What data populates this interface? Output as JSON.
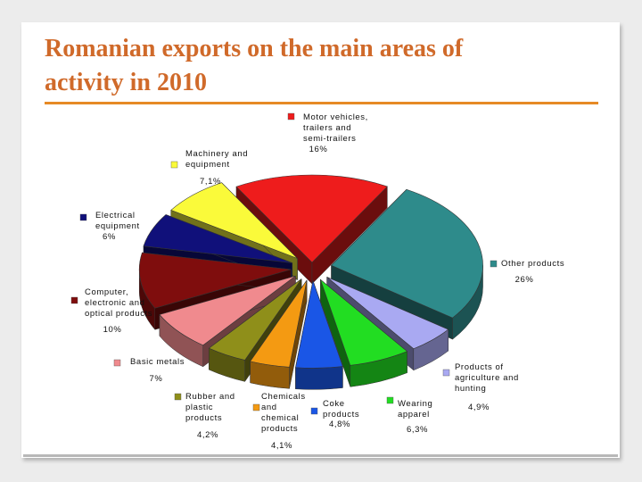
{
  "slide": {
    "title": "Romanian exports on the main areas of activity in 2010"
  },
  "colors": {
    "title": "#d06a2a",
    "title_rule": "#e68a25"
  },
  "chart_data": {
    "type": "pie",
    "title": "",
    "style": "3d exploded pie",
    "legend": "labels beside each slice",
    "slices": [
      {
        "name": "Motor vehicles, trailers and semi-trailers",
        "label_lines": [
          "Motor vehicles,",
          "trailers and",
          "semi-trailers"
        ],
        "value": 16,
        "value_text": "16%",
        "color": "#ee1c1c"
      },
      {
        "name": "Other products",
        "label_lines": [
          "Other products"
        ],
        "value": 26,
        "value_text": "26%",
        "color": "#2e8b8b"
      },
      {
        "name": "Products of agriculture and hunting",
        "label_lines": [
          "Products of",
          "agriculture and",
          "hunting"
        ],
        "value": 4.9,
        "value_text": "4,9%",
        "color": "#a9a9f2"
      },
      {
        "name": "Wearing apparel",
        "label_lines": [
          "Wearing",
          "apparel"
        ],
        "value": 6.3,
        "value_text": "6,3%",
        "color": "#22dd22"
      },
      {
        "name": "Coke products",
        "label_lines": [
          "Coke",
          "products"
        ],
        "value": 4.8,
        "value_text": "4,8%",
        "color": "#1a56e6"
      },
      {
        "name": "Chemicals and chemical products",
        "label_lines": [
          "Chemicals",
          "and",
          "chemical",
          "products"
        ],
        "value": 4.1,
        "value_text": "4,1%",
        "color": "#f49a12"
      },
      {
        "name": "Rubber and plastic products",
        "label_lines": [
          "Rubber and",
          "plastic",
          "products"
        ],
        "value": 4.2,
        "value_text": "4,2%",
        "color": "#8f8f1a"
      },
      {
        "name": "Basic metals",
        "label_lines": [
          "Basic metals"
        ],
        "value": 7,
        "value_text": "7%",
        "color": "#f08a8e"
      },
      {
        "name": "Computer, electronic and optical products",
        "label_lines": [
          "Computer,",
          "electronic and",
          "optical products"
        ],
        "value": 10,
        "value_text": "10%",
        "color": "#7f0d0d"
      },
      {
        "name": "Electrical equipment",
        "label_lines": [
          "Electrical",
          "equipment"
        ],
        "value": 6,
        "value_text": "6%",
        "color": "#10107a"
      },
      {
        "name": "Machinery and equipment",
        "label_lines": [
          "Machinery and",
          "equipment"
        ],
        "value": 7.1,
        "value_text": "7,1%",
        "color": "#fafa3a"
      }
    ]
  }
}
